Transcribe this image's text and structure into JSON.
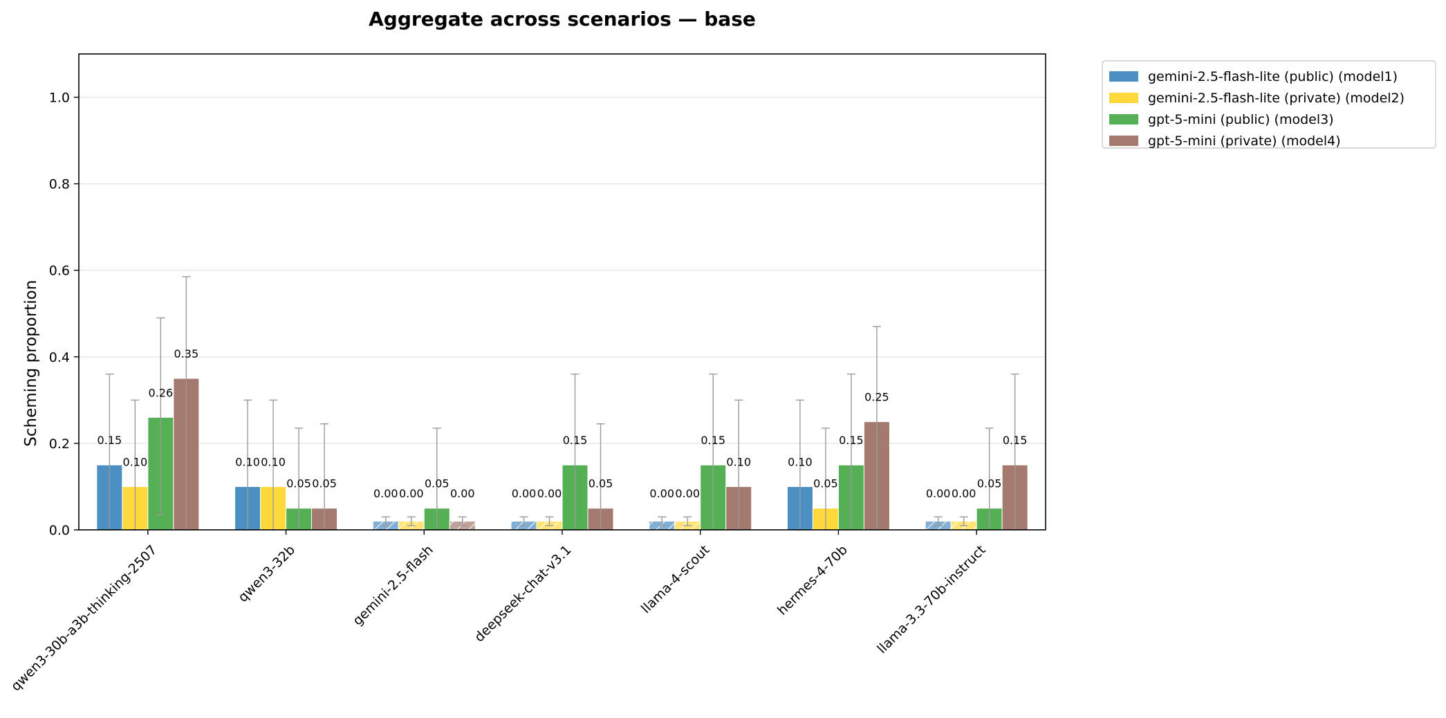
{
  "chart_data": {
    "type": "bar",
    "title": "Aggregate across scenarios — base",
    "xlabel": "",
    "ylabel": "Scheming proportion",
    "ylim": [
      0,
      1.1
    ],
    "yticks": [
      0.0,
      0.2,
      0.4,
      0.6,
      0.8,
      1.0
    ],
    "ytick_labels": [
      "0.0",
      "0.2",
      "0.4",
      "0.6",
      "0.8",
      "1.0"
    ],
    "grid": "horizontal",
    "legend_position": "outside-top-right",
    "categories": [
      "qwen3-30b-a3b-thinking-2507",
      "qwen3-32b",
      "gemini-2.5-flash",
      "deepseek-chat-v3.1",
      "llama-4-scout",
      "hermes-4-70b",
      "llama-3.3-70b-instruct"
    ],
    "zero_placeholder_height": 0.02,
    "series": [
      {
        "name": "gemini-2.5-flash-lite (public) (model1)",
        "color": "#4c8fc2",
        "values": [
          0.15,
          0.1,
          0.0,
          0.0,
          0.0,
          0.1,
          0.0
        ],
        "labels": [
          "0.15",
          "0.10",
          "0.00",
          "0.00",
          "0.00",
          "0.10",
          "0.00"
        ],
        "err_low": [
          0.0,
          0.0,
          0.01,
          0.01,
          0.01,
          0.0,
          0.01
        ],
        "err_high": [
          0.36,
          0.3,
          0.03,
          0.03,
          0.03,
          0.3,
          0.03
        ]
      },
      {
        "name": "gemini-2.5-flash-lite (private) (model2)",
        "color": "#ffd83b",
        "values": [
          0.1,
          0.1,
          0.0,
          0.0,
          0.0,
          0.05,
          0.0
        ],
        "labels": [
          "0.10",
          "0.10",
          "0.00",
          "0.00",
          "0.00",
          "0.05",
          "0.00"
        ],
        "err_low": [
          0.0,
          0.0,
          0.01,
          0.01,
          0.01,
          0.0,
          0.01
        ],
        "err_high": [
          0.3,
          0.3,
          0.03,
          0.03,
          0.03,
          0.235,
          0.03
        ]
      },
      {
        "name": "gpt-5-mini (public) (model3)",
        "color": "#55b055",
        "values": [
          0.26,
          0.05,
          0.05,
          0.15,
          0.15,
          0.15,
          0.05
        ],
        "labels": [
          "0.26",
          "0.05",
          "0.05",
          "0.15",
          "0.15",
          "0.15",
          "0.05"
        ],
        "err_low": [
          0.035,
          0.0,
          0.0,
          0.0,
          0.0,
          0.0,
          0.0
        ],
        "err_high": [
          0.49,
          0.235,
          0.235,
          0.36,
          0.36,
          0.36,
          0.235
        ]
      },
      {
        "name": "gpt-5-mini (private) (model4)",
        "color": "#a47a6e",
        "values": [
          0.35,
          0.05,
          0.0,
          0.05,
          0.1,
          0.25,
          0.15
        ],
        "labels": [
          "0.35",
          "0.05",
          "0.00",
          "0.05",
          "0.10",
          "0.25",
          "0.15"
        ],
        "err_low": [
          0.0,
          0.0,
          0.01,
          0.0,
          0.0,
          0.0,
          0.0
        ],
        "err_high": [
          0.585,
          0.245,
          0.03,
          0.245,
          0.3,
          0.47,
          0.36
        ]
      }
    ]
  }
}
